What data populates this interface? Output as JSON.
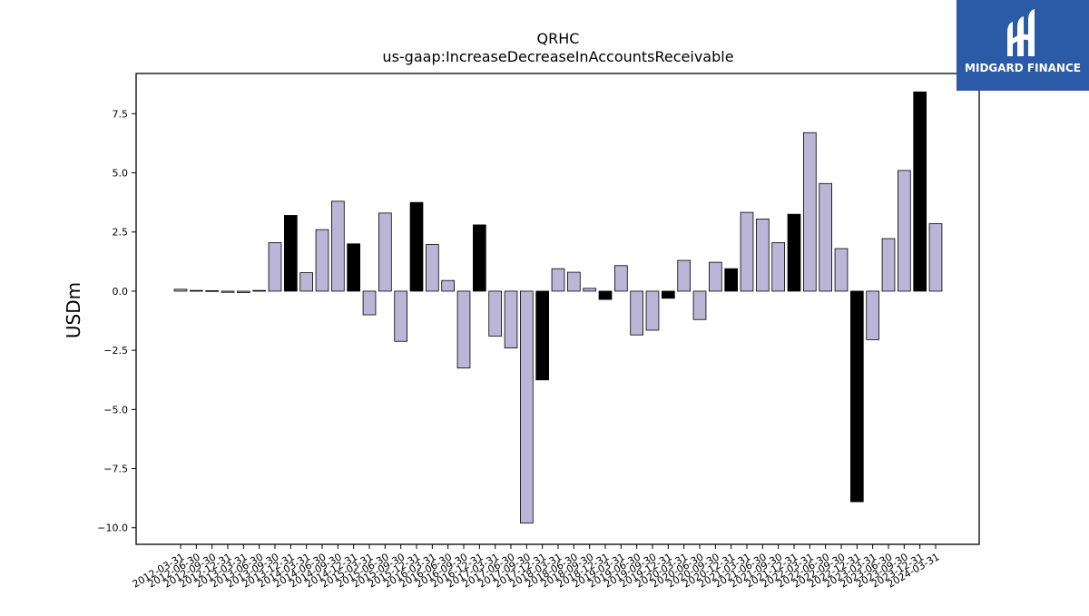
{
  "brand": {
    "name": "MIDGARD FINANCE",
    "logo_icon": "midgard-m-logo-icon",
    "color": "#2b5aa6"
  },
  "chart_data": {
    "type": "bar",
    "title": "QRHC",
    "subtitle": "us-gaap:IncreaseDecreaseInAccountsReceivable",
    "ylabel": "USDm",
    "xlabel": "",
    "ylim": [
      -10.7,
      9.2
    ],
    "yticks": [
      7.5,
      5.0,
      2.5,
      0.0,
      -2.5,
      -5.0,
      -7.5,
      -10.0
    ],
    "ytick_labels": [
      "7.5",
      "5.0",
      "2.5",
      "0.0",
      "−2.5",
      "−5.0",
      "−7.5",
      "−10.0"
    ],
    "colors": {
      "quarter": "#bbb5d8",
      "annual": "#000000",
      "edge": "#000000"
    },
    "categories": [
      "2012-03-31",
      "2012-06-30",
      "2012-09-30",
      "2012-12-31",
      "2013-03-31",
      "2013-06-30",
      "2013-09-30",
      "2013-12-31",
      "2014-03-31",
      "2014-06-30",
      "2014-09-30",
      "2014-12-31",
      "2015-03-31",
      "2015-06-30",
      "2015-09-30",
      "2015-12-31",
      "2016-03-31",
      "2016-06-30",
      "2016-09-30",
      "2016-12-31",
      "2017-03-31",
      "2017-06-30",
      "2017-09-30",
      "2017-12-31",
      "2018-03-31",
      "2018-06-30",
      "2018-09-30",
      "2018-12-31",
      "2019-03-31",
      "2019-06-30",
      "2019-09-30",
      "2019-12-31",
      "2020-03-31",
      "2020-06-30",
      "2020-09-30",
      "2020-12-31",
      "2021-03-31",
      "2021-06-30",
      "2021-09-30",
      "2021-12-31",
      "2022-03-31",
      "2022-06-30",
      "2022-09-30",
      "2022-12-31",
      "2023-03-31",
      "2023-06-30",
      "2023-09-30",
      "2023-12-31",
      "2024-03-31"
    ],
    "values": [
      0.08,
      0.03,
      0.02,
      -0.05,
      -0.06,
      0.03,
      2.05,
      3.2,
      0.78,
      2.6,
      3.8,
      2.0,
      -1.0,
      3.3,
      -2.12,
      3.75,
      1.97,
      0.45,
      -3.25,
      2.8,
      -1.9,
      -2.4,
      -9.8,
      -3.75,
      0.95,
      0.8,
      0.12,
      -0.35,
      1.08,
      -1.85,
      -1.65,
      -0.3,
      1.3,
      -1.2,
      1.22,
      0.95,
      3.33,
      3.05,
      2.05,
      3.25,
      6.7,
      4.55,
      1.8,
      -8.9,
      -2.05,
      2.22,
      5.1,
      8.42,
      2.85
    ],
    "annual": [
      false,
      false,
      false,
      false,
      false,
      false,
      false,
      true,
      false,
      false,
      false,
      true,
      false,
      false,
      false,
      true,
      false,
      false,
      false,
      true,
      false,
      false,
      false,
      true,
      false,
      false,
      false,
      true,
      false,
      false,
      false,
      true,
      false,
      false,
      false,
      true,
      false,
      false,
      false,
      true,
      false,
      false,
      false,
      true,
      false,
      false,
      false,
      true,
      false
    ],
    "grid": false,
    "legend": "none"
  }
}
